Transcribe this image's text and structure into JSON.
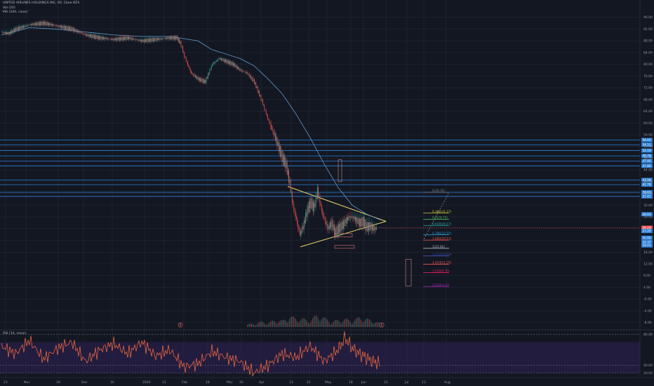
{
  "legend": {
    "symbol": "UNITED AIRLINES HOLDINGS INC, 60, Cboe BZX",
    "volume": "Vol (20)",
    "ma": "MA (200, close)",
    "rsi": "RSI (14, close)"
  },
  "colors": {
    "background": "#131722",
    "grid": "#232834",
    "up": "#26a69a",
    "down": "#ef5350",
    "ma": "#5b8fb9",
    "rsi": "#ff7043",
    "rsi_band": "#2a1f4a",
    "support_line": "#2f7fd6",
    "triangle": "#e8d36a",
    "last_price": "#ef5350"
  },
  "chart_data": {
    "type": "line",
    "price_axis": {
      "ylim": [
        -10,
        100
      ],
      "ticks": [
        "96.00",
        "92.00",
        "88.00",
        "84.00",
        "80.00",
        "76.00",
        "72.00",
        "68.00",
        "64.00",
        "60.00",
        "56.00",
        "52.00",
        "48.00",
        "44.00",
        "40.00",
        "36.00",
        "32.00",
        "28.00",
        "24.00",
        "20.00",
        "16.00",
        "12.00",
        "8.00",
        "4.00",
        "-0.00",
        "-4.00",
        "-8.00"
      ]
    },
    "time_axis": {
      "labels": [
        "23",
        "Nov",
        "18",
        "Dec",
        "16",
        "2020",
        "13",
        "Feb",
        "18",
        "Mar",
        "16",
        "Apr",
        "13",
        "22",
        "May",
        "18",
        "Jun",
        "15",
        "Jul",
        "13",
        "Aug"
      ]
    },
    "price_series": {
      "name": "UAL",
      "x_index": [
        0,
        10,
        20,
        40,
        60,
        80,
        100,
        120,
        140,
        160,
        180,
        200,
        220,
        240,
        250,
        255,
        260,
        265,
        270,
        280,
        290,
        300,
        310,
        320,
        330,
        340,
        350,
        360,
        370,
        380,
        390,
        400,
        405,
        410,
        415,
        420,
        425,
        430,
        435,
        440,
        445,
        450,
        455,
        460,
        465,
        470,
        475,
        480,
        485,
        490,
        495,
        500,
        505,
        510,
        515,
        520,
        525,
        530,
        535
      ],
      "values": [
        91,
        90.5,
        92,
        93.5,
        94,
        93,
        92,
        90,
        89,
        88.5,
        89,
        88,
        88.5,
        89,
        89,
        87,
        83,
        80,
        77,
        75,
        74,
        80,
        82,
        81,
        80,
        78,
        77,
        74,
        68,
        61,
        55,
        48,
        46,
        40,
        32,
        27,
        22,
        25,
        30,
        33,
        31,
        37,
        31,
        27,
        24,
        26,
        22.5,
        24,
        25,
        26.5,
        28,
        28,
        27,
        26,
        26.5,
        24.5,
        25,
        24,
        24.2
      ]
    },
    "ma_series": {
      "name": "MA (200, close)",
      "x_index": [
        0,
        40,
        80,
        120,
        160,
        200,
        240,
        280,
        300,
        320,
        340,
        360,
        380,
        400,
        420,
        440,
        460,
        480,
        500,
        520,
        540
      ],
      "values": [
        90,
        92.5,
        92,
        91,
        90,
        89.5,
        89.5,
        88,
        85,
        83.5,
        82,
        79.5,
        75,
        70,
        63,
        55,
        46,
        38,
        32,
        29,
        27
      ]
    },
    "rsi_series": {
      "name": "RSI (14, close)",
      "ylim": [
        25,
        85
      ],
      "levels": [
        "80.00",
        "40.00",
        "20.00"
      ],
      "band": [
        30,
        70
      ],
      "x_index": [
        0,
        20,
        40,
        60,
        80,
        100,
        120,
        140,
        160,
        180,
        200,
        220,
        240,
        260,
        280,
        300,
        320,
        340,
        360,
        380,
        400,
        420,
        440,
        460,
        480,
        490,
        500,
        510,
        520,
        530,
        540
      ],
      "values": [
        65,
        55,
        72,
        48,
        62,
        70,
        45,
        60,
        68,
        55,
        70,
        52,
        60,
        38,
        42,
        58,
        50,
        45,
        30,
        40,
        55,
        50,
        65,
        45,
        60,
        76,
        62,
        55,
        50,
        45,
        42
      ]
    },
    "volume_series": {
      "name": "Vol (20)",
      "x_index": [
        350,
        360,
        370,
        380,
        390,
        400,
        410,
        420,
        430,
        440,
        450,
        460,
        470,
        480,
        490,
        500,
        510,
        520,
        530,
        540
      ],
      "values": [
        3,
        4,
        6,
        5,
        8,
        7,
        12,
        10,
        9,
        8,
        14,
        10,
        6,
        8,
        9,
        7,
        11,
        9,
        7,
        4
      ]
    },
    "support_levels": [
      {
        "value": 54.2,
        "label": "56.65"
      },
      {
        "value": 52.6,
        "label": "54.51"
      },
      {
        "value": 50.6,
        "label": "52.19"
      },
      {
        "value": 48.8,
        "label": "49.78"
      },
      {
        "value": 47.0,
        "label": "47.95"
      },
      {
        "value": 45.4,
        "label": "47.80"
      },
      {
        "value": 40.6,
        "label": "43.58"
      },
      {
        "value": 39.0,
        "label": "41.78"
      },
      {
        "value": 36.4,
        "label": "38.03"
      },
      {
        "value": 35.0,
        "label": "37.41"
      }
    ],
    "right_price_tags": [
      {
        "value": 28.9,
        "label": "28.93"
      },
      {
        "value": 24.3,
        "label": "24.24",
        "color": "#ef5350"
      },
      {
        "value": 23.2,
        "label": "23.20"
      },
      {
        "value": 20.9,
        "label": "20.90"
      },
      {
        "value": 19.4,
        "label": "19.37"
      },
      {
        "value": 18.3,
        "label": "18.03"
      }
    ],
    "fibonacci": [
      {
        "ratio_label": "0(38.36)",
        "value": 36.4,
        "color": "#787b86"
      },
      {
        "ratio_label": "0.382(31.27)",
        "value": 29.3,
        "color": "#c9c232"
      },
      {
        "ratio_label": "0.5(28.75)",
        "value": 27.2,
        "color": "#4caf50"
      },
      {
        "ratio_label": "0.618(26.17)",
        "value": 25.1,
        "color": "#26a69a"
      },
      {
        "ratio_label": "0.786(22.55)",
        "value": 21.9,
        "color": "#2a9fd6"
      },
      {
        "ratio_label": "1.000(20.13)",
        "value": 20.1,
        "color": "#ef5350"
      },
      {
        "ratio_label": "1(15.92)",
        "value": 17.3,
        "color": "#b2b5be"
      },
      {
        "ratio_label": "1.272(13.50)",
        "value": 14.7,
        "color": "#3f51b5"
      },
      {
        "ratio_label": "1.414(11.20)",
        "value": 11.9,
        "color": "#ef5350"
      },
      {
        "ratio_label": "1.618(8.70)",
        "value": 9.0,
        "color": "#e91e63"
      },
      {
        "ratio_label": "2.618(4.23)",
        "value": 4.3,
        "color": "#9c27b0"
      }
    ],
    "event_markers": [
      {
        "x_index": 255,
        "label": "E"
      },
      {
        "x_index": 542,
        "label": "E"
      }
    ],
    "grid": true
  }
}
